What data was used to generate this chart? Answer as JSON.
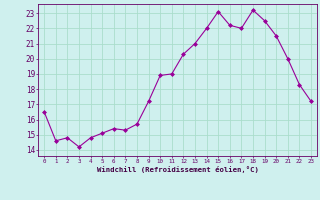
{
  "x": [
    0,
    1,
    2,
    3,
    4,
    5,
    6,
    7,
    8,
    9,
    10,
    11,
    12,
    13,
    14,
    15,
    16,
    17,
    18,
    19,
    20,
    21,
    22,
    23
  ],
  "y": [
    16.5,
    14.6,
    14.8,
    14.2,
    14.8,
    15.1,
    15.4,
    15.3,
    15.7,
    17.2,
    18.9,
    19.0,
    20.3,
    21.0,
    22.0,
    23.1,
    22.2,
    22.0,
    23.2,
    22.5,
    21.5,
    20.0,
    18.3,
    17.2
  ],
  "line_color": "#990099",
  "marker": "D",
  "marker_size": 2.0,
  "bg_color": "#cff0ee",
  "grid_color": "#aaddcc",
  "xlabel": "Windchill (Refroidissement éolien,°C)",
  "ylabel_ticks": [
    14,
    15,
    16,
    17,
    18,
    19,
    20,
    21,
    22,
    23
  ],
  "xlim": [
    -0.5,
    23.5
  ],
  "ylim": [
    13.6,
    23.6
  ]
}
